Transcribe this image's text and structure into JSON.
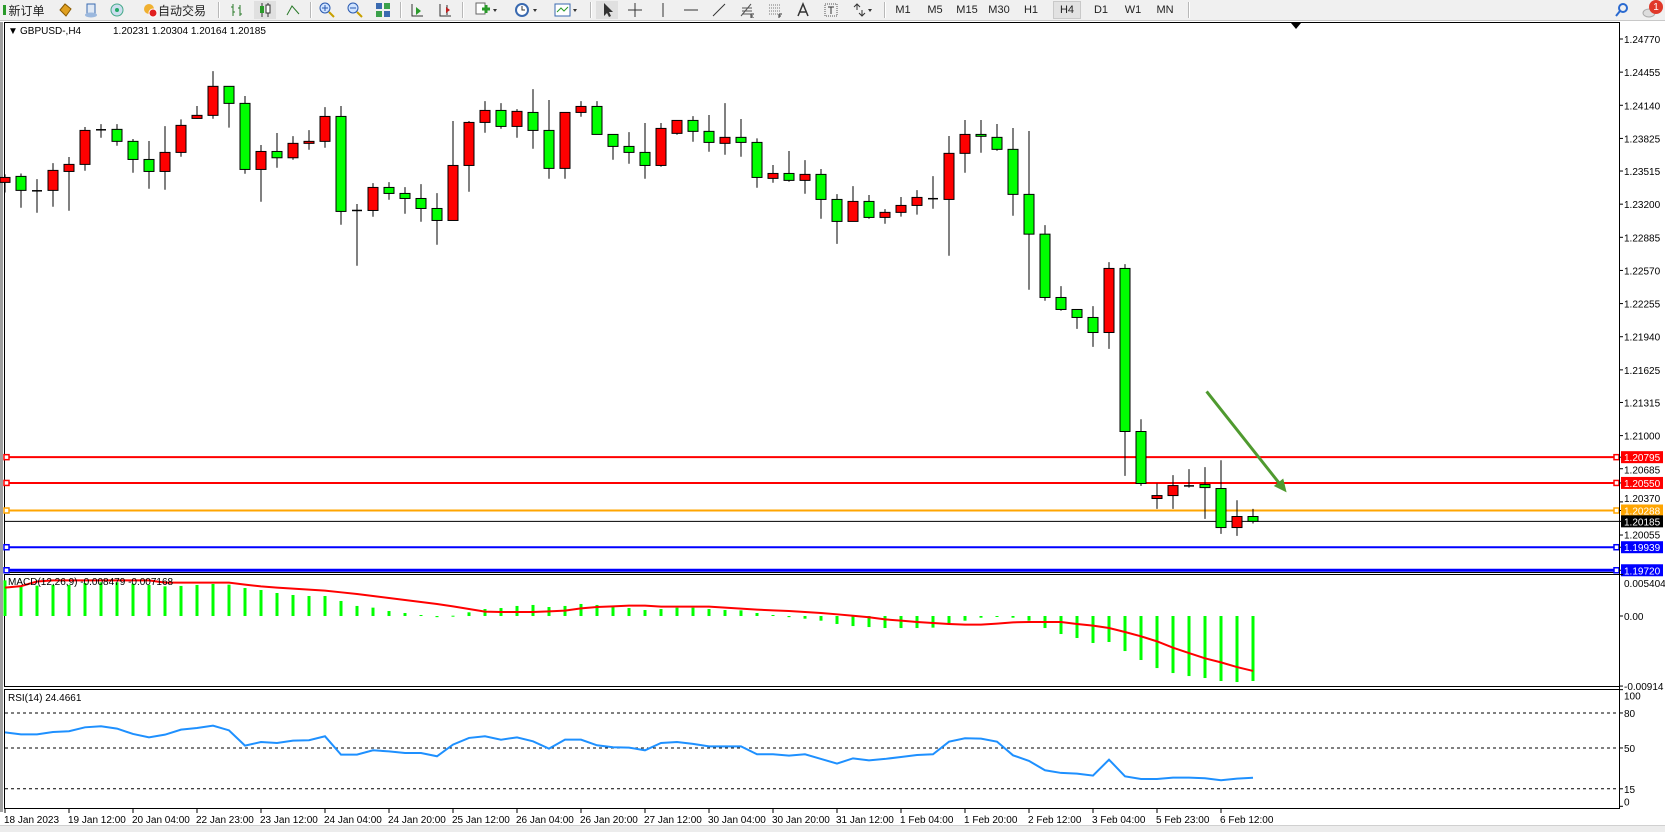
{
  "toolbar": {
    "new_order_label": "新订单",
    "auto_trading_label": "自动交易",
    "timeframes": [
      "M1",
      "M5",
      "M15",
      "M30",
      "H1",
      "H4",
      "D1",
      "W1",
      "MN"
    ],
    "active_timeframe": "H4",
    "notification_count": "1",
    "icons": [
      "new-order-icon",
      "market-watch-icon",
      "data-window-icon",
      "navigator-icon",
      "terminal-icon",
      "auto-trading-icon",
      "bar-chart-icon",
      "candlestick-icon",
      "line-chart-icon",
      "zoom-in-icon",
      "zoom-out-icon",
      "tile-windows-icon",
      "auto-scroll-icon",
      "chart-shift-icon",
      "indicators-icon",
      "periods-icon",
      "templates-icon",
      "cursor-icon",
      "crosshair-icon",
      "vertical-line-icon",
      "horizontal-line-icon",
      "trendline-icon",
      "fibonacci-icon",
      "fibo-fan-icon",
      "text-icon",
      "text-label-icon",
      "arrows-icon",
      "search-icon",
      "notifications-icon"
    ]
  },
  "chart_header": {
    "symbol_timeframe": "GBPUSD-,H4",
    "ohlc": "1.20231 1.20304 1.20164 1.20185"
  },
  "colors": {
    "bull": "#ff0000",
    "bear": "#00ff00",
    "macd_hist": "#00ff00",
    "macd_signal": "#ff0000",
    "rsi": "#1e90ff",
    "arrow": "#4f9a2f"
  },
  "chart_data": [
    {
      "type": "candlestick",
      "title": "GBPUSD-,H4  1.20231 1.20304 1.20164 1.20185",
      "ylim": [
        1.19703,
        1.24922
      ],
      "y_ticks": [
        "1.24770",
        "1.24455",
        "1.24140",
        "1.23825",
        "1.23515",
        "1.23200",
        "1.22885",
        "1.22570",
        "1.22255",
        "1.21940",
        "1.21625",
        "1.21315",
        "1.21000",
        "1.20685",
        "1.20370",
        "1.20055"
      ],
      "x_ticks": [
        {
          "index": 0,
          "label": "18 Jan 2023"
        },
        {
          "index": 4,
          "label": "19 Jan 12:00"
        },
        {
          "index": 8,
          "label": "20 Jan 04:00"
        },
        {
          "index": 12,
          "label": "22 Jan 23:00"
        },
        {
          "index": 16,
          "label": "23 Jan 12:00"
        },
        {
          "index": 20,
          "label": "24 Jan 04:00"
        },
        {
          "index": 24,
          "label": "24 Jan 20:00"
        },
        {
          "index": 28,
          "label": "25 Jan 12:00"
        },
        {
          "index": 32,
          "label": "26 Jan 04:00"
        },
        {
          "index": 36,
          "label": "26 Jan 20:00"
        },
        {
          "index": 40,
          "label": "27 Jan 12:00"
        },
        {
          "index": 44,
          "label": "30 Jan 04:00"
        },
        {
          "index": 48,
          "label": "30 Jan 20:00"
        },
        {
          "index": 52,
          "label": "31 Jan 12:00"
        },
        {
          "index": 56,
          "label": "1 Feb 04:00"
        },
        {
          "index": 60,
          "label": "1 Feb 20:00"
        },
        {
          "index": 64,
          "label": "2 Feb 12:00"
        },
        {
          "index": 68,
          "label": "3 Feb 04:00"
        },
        {
          "index": 72,
          "label": "5 Feb 23:00"
        },
        {
          "index": 76,
          "label": "6 Feb 12:00"
        }
      ],
      "ohlc": [
        [
          1.23407,
          1.23483,
          1.23311,
          1.23454
        ],
        [
          1.23464,
          1.23492,
          1.23166,
          1.23331
        ],
        [
          1.23327,
          1.23438,
          1.23118,
          1.23327
        ],
        [
          1.23331,
          1.2359,
          1.23175,
          1.23521
        ],
        [
          1.23511,
          1.23648,
          1.23137,
          1.23578
        ],
        [
          1.23578,
          1.23933,
          1.23518,
          1.23901
        ],
        [
          1.23907,
          1.23961,
          1.23831,
          1.23907
        ],
        [
          1.23911,
          1.23961,
          1.23755,
          1.23797
        ],
        [
          1.23797,
          1.23819,
          1.23499,
          1.23625
        ],
        [
          1.23625,
          1.238,
          1.23346,
          1.23511
        ],
        [
          1.23511,
          1.23942,
          1.23337,
          1.23692
        ],
        [
          1.23692,
          1.24006,
          1.23651,
          1.23949
        ],
        [
          1.24015,
          1.24133,
          1.24012,
          1.24044
        ],
        [
          1.24044,
          1.24465,
          1.24012,
          1.2432
        ],
        [
          1.2432,
          1.2432,
          1.23927,
          1.24158
        ],
        [
          1.24158,
          1.24228,
          1.23489,
          1.2353
        ],
        [
          1.2353,
          1.23762,
          1.23223,
          1.23701
        ],
        [
          1.23701,
          1.23876,
          1.23546,
          1.23641
        ],
        [
          1.23641,
          1.23847,
          1.23622,
          1.23778
        ],
        [
          1.23778,
          1.23904,
          1.23717,
          1.23797
        ],
        [
          1.23797,
          1.24123,
          1.23736,
          1.24034
        ],
        [
          1.24034,
          1.24133,
          1.23004,
          1.23131
        ],
        [
          1.2314,
          1.23201,
          1.22614,
          1.2314
        ],
        [
          1.2314,
          1.234,
          1.2308,
          1.23359
        ],
        [
          1.23359,
          1.2341,
          1.23242,
          1.23302
        ],
        [
          1.23302,
          1.23362,
          1.23109,
          1.23254
        ],
        [
          1.23254,
          1.23391,
          1.23033,
          1.23159
        ],
        [
          1.23159,
          1.23305,
          1.22814,
          1.23045
        ],
        [
          1.23045,
          1.2399,
          1.23045,
          1.23568
        ],
        [
          1.23568,
          1.2399,
          1.23318,
          1.23977
        ],
        [
          1.23977,
          1.2418,
          1.23879,
          1.24091
        ],
        [
          1.24091,
          1.24161,
          1.23917,
          1.23939
        ],
        [
          1.23939,
          1.24104,
          1.23831,
          1.24082
        ],
        [
          1.24072,
          1.24294,
          1.23727,
          1.23901
        ],
        [
          1.23901,
          1.2419,
          1.23441,
          1.2354
        ],
        [
          1.2354,
          1.24072,
          1.23441,
          1.24072
        ],
        [
          1.24072,
          1.2418,
          1.24031,
          1.24129
        ],
        [
          1.24129,
          1.2418,
          1.23863,
          1.23863
        ],
        [
          1.23863,
          1.23863,
          1.23622,
          1.23749
        ],
        [
          1.23749,
          1.23885,
          1.23584,
          1.23692
        ],
        [
          1.23692,
          1.23971,
          1.23441,
          1.23568
        ],
        [
          1.23568,
          1.23971,
          1.23556,
          1.2392
        ],
        [
          1.23873,
          1.23996,
          1.2386,
          1.23996
        ],
        [
          1.23996,
          1.24037,
          1.23793,
          1.23892
        ],
        [
          1.23892,
          1.24047,
          1.23698,
          1.23787
        ],
        [
          1.23778,
          1.24161,
          1.2367,
          1.23835
        ],
        [
          1.23835,
          1.2401,
          1.23651,
          1.23787
        ],
        [
          1.23787,
          1.23825,
          1.23356,
          1.23454
        ],
        [
          1.23445,
          1.23572,
          1.23404,
          1.23492
        ],
        [
          1.23492,
          1.23705,
          1.23413,
          1.23426
        ],
        [
          1.23426,
          1.23619,
          1.23299,
          1.23483
        ],
        [
          1.23483,
          1.23534,
          1.23061,
          1.23245
        ],
        [
          1.23245,
          1.23296,
          1.22823,
          1.23036
        ],
        [
          1.23036,
          1.23372,
          1.23036,
          1.23226
        ],
        [
          1.23226,
          1.23287,
          1.23061,
          1.23074
        ],
        [
          1.23074,
          1.23153,
          1.23014,
          1.23122
        ],
        [
          1.23122,
          1.23268,
          1.23081,
          1.23188
        ],
        [
          1.23188,
          1.23334,
          1.231,
          1.23264
        ],
        [
          1.23252,
          1.23467,
          1.23157,
          1.23252
        ],
        [
          1.23245,
          1.23848,
          1.2271,
          1.23683
        ],
        [
          1.23683,
          1.24,
          1.23499,
          1.23863
        ],
        [
          1.23863,
          1.24,
          1.23689,
          1.23845
        ],
        [
          1.23835,
          1.23962,
          1.23708,
          1.23721
        ],
        [
          1.23721,
          1.23924,
          1.2309,
          1.23293
        ],
        [
          1.23293,
          1.23895,
          1.22386,
          1.22915
        ],
        [
          1.22915,
          1.23001,
          1.22282,
          1.22313
        ],
        [
          1.22313,
          1.22421,
          1.22187,
          1.22199
        ],
        [
          1.22199,
          1.22199,
          1.22015,
          1.22123
        ],
        [
          1.22123,
          1.22231,
          1.21844,
          1.2198
        ],
        [
          1.2198,
          1.22649,
          1.21825,
          1.22589
        ],
        [
          1.22589,
          1.2263,
          1.20617,
          1.21039
        ],
        [
          1.21039,
          1.21156,
          1.20522,
          1.20545
        ],
        [
          1.20402,
          1.20545,
          1.20304,
          1.2043
        ],
        [
          1.2043,
          1.20624,
          1.20304,
          1.20525
        ],
        [
          1.20522,
          1.20681,
          1.20506,
          1.20522
        ],
        [
          1.20535,
          1.207,
          1.20208,
          1.20506
        ],
        [
          1.20497,
          1.20766,
          1.20066,
          1.20126
        ],
        [
          1.20126,
          1.20386,
          1.20047,
          1.20231
        ],
        [
          1.20231,
          1.20304,
          1.20164,
          1.20185
        ]
      ],
      "horizontal_lines": [
        {
          "price": "1.20795",
          "color": "#ff0000",
          "style": "solid"
        },
        {
          "price": "1.20550",
          "color": "#ff0000",
          "style": "solid"
        },
        {
          "price": "1.20288",
          "color": "#ffa500",
          "style": "solid"
        },
        {
          "price": "1.20185",
          "color": "#000000",
          "style": "bid"
        },
        {
          "price": "1.19939",
          "color": "#0000ff",
          "style": "solid"
        },
        {
          "price": "1.19720",
          "color": "#0000ff",
          "style": "solid"
        }
      ],
      "annotations": [
        {
          "type": "arrow",
          "from": [
            75.1,
            1.2142
          ],
          "to": [
            80.1,
            1.2046
          ],
          "color": "#4f9a2f"
        }
      ]
    },
    {
      "type": "bar+line",
      "title": "MACD(12,26,9) -0.008479 -0.007168",
      "y_ticks": [
        "0.005404",
        "0.00",
        "-0.00914"
      ],
      "histogram": [
        0.00465,
        0.00387,
        0.00396,
        0.00405,
        0.00405,
        0.00431,
        0.00439,
        0.00439,
        0.00422,
        0.00405,
        0.00387,
        0.00392,
        0.00405,
        0.00418,
        0.00409,
        0.00365,
        0.00339,
        0.003,
        0.00274,
        0.00261,
        0.00261,
        0.00196,
        0.00131,
        0.00109,
        0.00065,
        0.00039,
        0.00013,
        -0.00015,
        4e-05,
        0.00048,
        0.00091,
        0.00104,
        0.00131,
        0.00144,
        0.00117,
        0.00131,
        0.00157,
        0.00144,
        0.00117,
        0.00104,
        0.00078,
        0.00091,
        0.00109,
        0.00109,
        0.00091,
        0.00078,
        0.00074,
        0.00039,
        0.00013,
        -0.00015,
        -0.00035,
        -0.00061,
        -0.00104,
        -0.00131,
        -0.00144,
        -0.00157,
        -0.00157,
        -0.00157,
        -0.00152,
        -0.00104,
        -0.00061,
        -0.00022,
        -9e-05,
        -0.00022,
        -0.00061,
        -0.00157,
        -0.00235,
        -0.00287,
        -0.00352,
        -0.00339,
        -0.00457,
        -0.00574,
        -0.00679,
        -0.00744,
        -0.00783,
        -0.00809,
        -0.00848,
        -0.00861,
        -0.008479
      ],
      "signal": [
        0.0037,
        0.0039,
        0.0045,
        0.00465,
        0.00465,
        0.00465,
        0.00465,
        0.00465,
        0.00465,
        0.00465,
        0.00435,
        0.00435,
        0.00435,
        0.00435,
        0.00435,
        0.00409,
        0.00387,
        0.0037,
        0.00357,
        0.00344,
        0.00331,
        0.00309,
        0.00287,
        0.00261,
        0.00235,
        0.00209,
        0.00183,
        0.00157,
        0.00126,
        0.00091,
        0.00057,
        0.00052,
        0.00052,
        0.00052,
        0.00061,
        0.0007,
        0.001,
        0.00117,
        0.00126,
        0.00135,
        0.00135,
        0.00122,
        0.00122,
        0.00122,
        0.00122,
        0.00109,
        0.00096,
        0.00083,
        0.00074,
        0.00065,
        0.00052,
        0.00039,
        0.00022,
        4e-05,
        -0.00017,
        -0.00044,
        -0.00061,
        -0.00078,
        -0.00091,
        -0.00104,
        -0.00113,
        -0.00113,
        -0.001,
        -0.00083,
        -0.00078,
        -0.00078,
        -0.00078,
        -0.00104,
        -0.00126,
        -0.00157,
        -0.00209,
        -0.00265,
        -0.00331,
        -0.00413,
        -0.00483,
        -0.00552,
        -0.00605,
        -0.00666,
        -0.007168
      ]
    },
    {
      "type": "line",
      "title": "RSI(14) 24.4661",
      "ylim": [
        0,
        100
      ],
      "y_ticks": [
        "100",
        "80",
        "50",
        "15",
        "0"
      ],
      "levels": [
        80,
        50,
        15
      ],
      "values": [
        63.4,
        61.7,
        61.7,
        63.7,
        64.3,
        67.7,
        68.6,
        66.6,
        62,
        59.1,
        61.4,
        65.7,
        67.1,
        69.1,
        65.1,
        52,
        55.1,
        54.3,
        56.3,
        56.6,
        60,
        44.3,
        44.3,
        48,
        47.1,
        45.7,
        45.7,
        42.9,
        52.9,
        58.6,
        60,
        57.1,
        59.1,
        55.7,
        49.4,
        57.1,
        57.1,
        52.3,
        50.6,
        50.3,
        48,
        54.3,
        55.1,
        53.5,
        51.4,
        51.4,
        51.4,
        44.6,
        44.6,
        43.4,
        44.6,
        40.6,
        36.6,
        41.1,
        39.4,
        40.6,
        42.3,
        44,
        44.6,
        55.4,
        58.3,
        58,
        55.4,
        43.7,
        38.9,
        30.9,
        28.6,
        28,
        26.3,
        40,
        25.7,
        23.4,
        23.4,
        24.6,
        24.6,
        24,
        22.3,
        23.7,
        24.4661
      ]
    }
  ]
}
